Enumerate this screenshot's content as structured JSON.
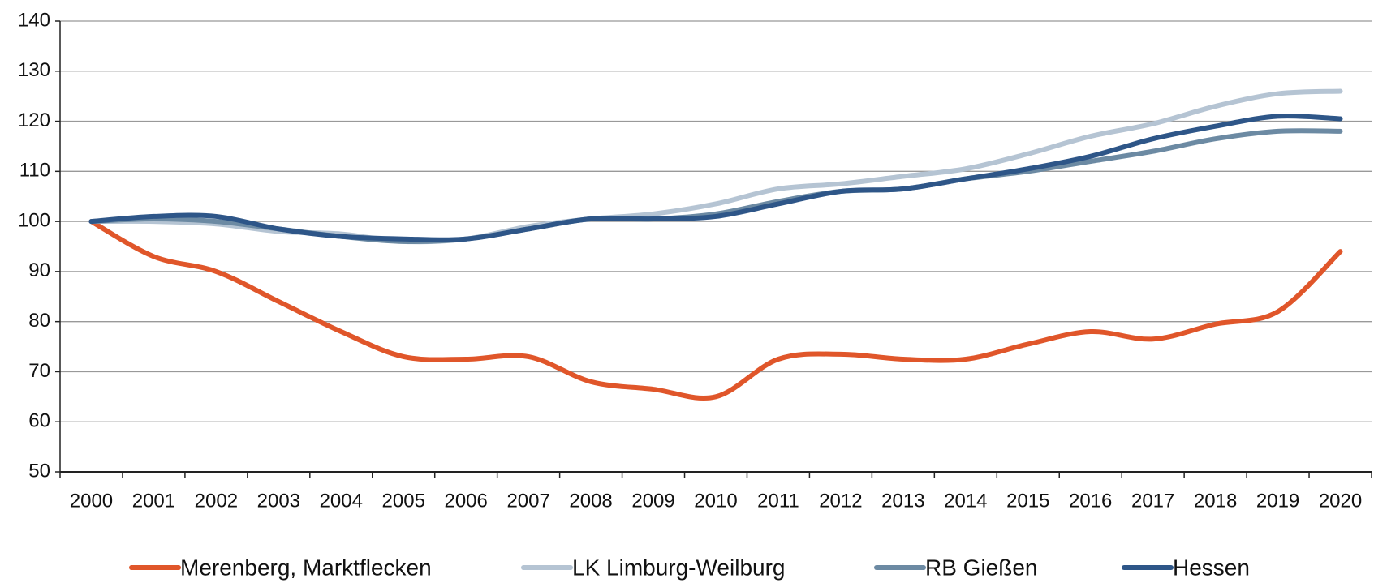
{
  "chart_data": {
    "type": "line",
    "categories": [
      "2000",
      "2001",
      "2002",
      "2003",
      "2004",
      "2005",
      "2006",
      "2007",
      "2008",
      "2009",
      "2010",
      "2011",
      "2012",
      "2013",
      "2014",
      "2015",
      "2016",
      "2017",
      "2018",
      "2019",
      "2020"
    ],
    "series": [
      {
        "name": "Merenberg, Marktflecken",
        "color": "#e0562a",
        "values": [
          100,
          93,
          90,
          84,
          78,
          73,
          72.5,
          73,
          68,
          66.5,
          65,
          72.5,
          73.5,
          72.5,
          72.5,
          75.5,
          78,
          76.5,
          79.5,
          82,
          94
        ]
      },
      {
        "name": "LK Limburg-Weilburg",
        "color": "#b5c4d3",
        "values": [
          100,
          100,
          99.5,
          98,
          97.5,
          96,
          96.5,
          99,
          100.5,
          101.5,
          103.5,
          106.5,
          107.5,
          109,
          110.5,
          113.5,
          117,
          119.5,
          123,
          125.5,
          126
        ]
      },
      {
        "name": "RB Gießen",
        "color": "#6c8aa3",
        "values": [
          100,
          100.5,
          100,
          98.5,
          97,
          96,
          96.5,
          98.5,
          100.5,
          100.5,
          101.5,
          104,
          106,
          106.5,
          108.5,
          110,
          112,
          114,
          116.5,
          118,
          118
        ]
      },
      {
        "name": "Hessen",
        "color": "#2e5688",
        "values": [
          100,
          101,
          101,
          98.5,
          97,
          96.5,
          96.5,
          98.5,
          100.5,
          100.5,
          101,
          103.5,
          106,
          106.5,
          108.5,
          110.5,
          113,
          116.5,
          119,
          121,
          120.5
        ]
      }
    ],
    "ylim": [
      50,
      140
    ],
    "yticks": [
      50,
      60,
      70,
      80,
      90,
      100,
      110,
      120,
      130,
      140
    ],
    "grid": true,
    "legend": "bottom"
  }
}
